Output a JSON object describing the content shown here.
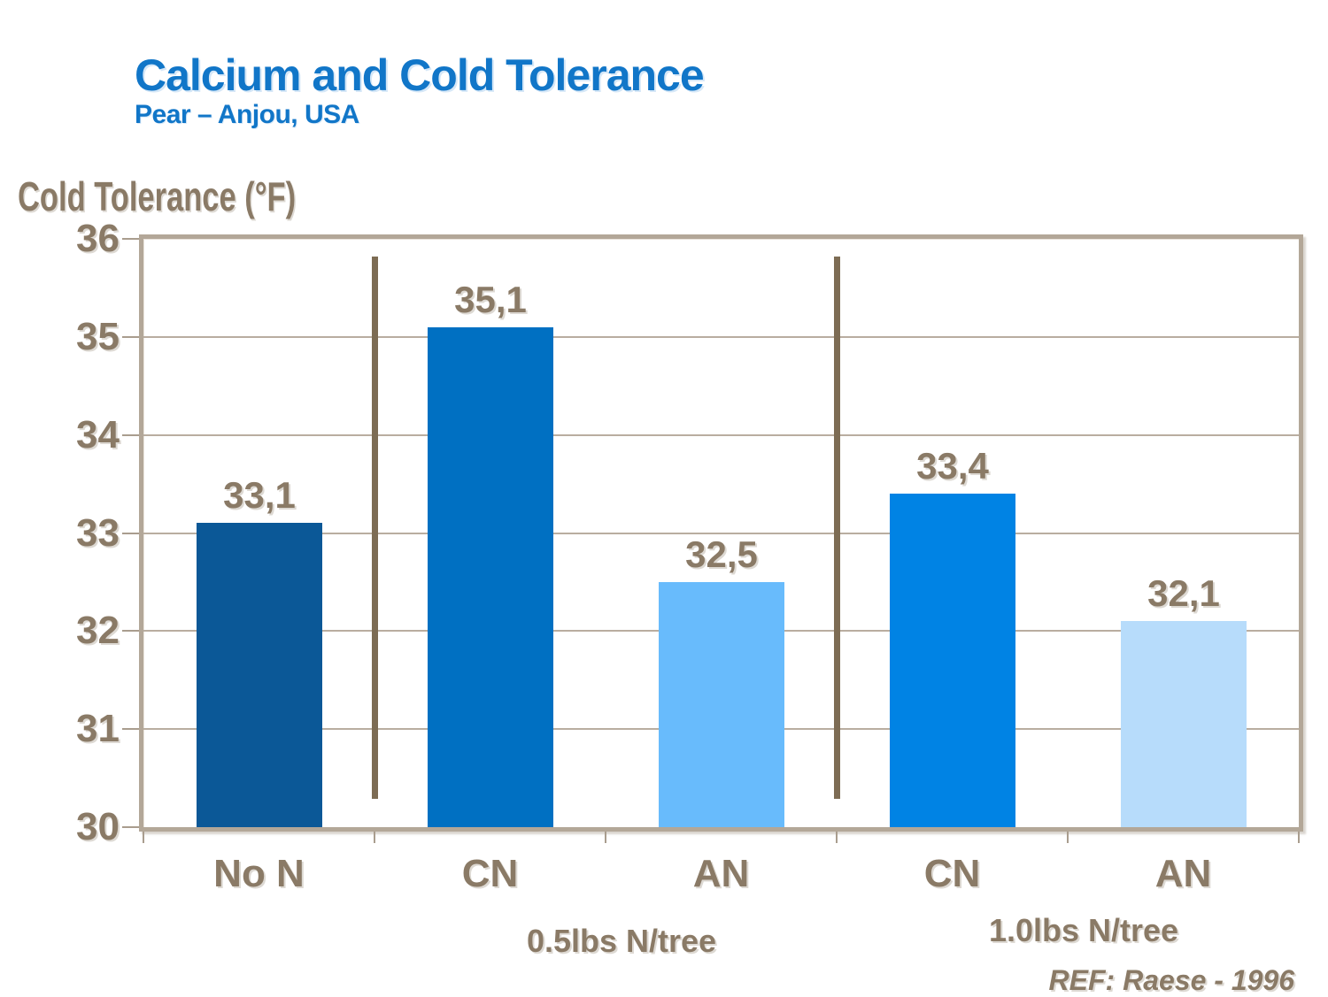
{
  "title": "Calcium and Cold Tolerance",
  "subtitle": "Pear – Anjou, USA",
  "reference": "REF: Raese - 1996",
  "chart_data": {
    "type": "bar",
    "title": "Calcium and Cold Tolerance",
    "subtitle": "Pear – Anjou, USA",
    "ylabel": "Cold Tolerance (°F)",
    "xlabel": "",
    "ylim": [
      30,
      36
    ],
    "yticks": [
      36,
      35,
      34,
      33,
      32,
      31,
      30
    ],
    "categories": [
      "No N",
      "CN",
      "AN",
      "CN",
      "AN"
    ],
    "values": [
      33.1,
      35.1,
      32.5,
      33.4,
      32.1
    ],
    "value_labels": [
      "33,1",
      "35,1",
      "32,5",
      "33,4",
      "32,1"
    ],
    "bar_colors": [
      "#0b5897",
      "#0070c2",
      "#68bbfc",
      "#0083e4",
      "#b7dcfb"
    ],
    "groups": [
      {
        "label": "0.5lbs N/tree",
        "categories": [
          "CN",
          "AN"
        ]
      },
      {
        "label": "1.0lbs N/tree",
        "categories": [
          "CN",
          "AN"
        ]
      }
    ],
    "group_divider_boundaries": [
      1,
      3
    ],
    "grid": true,
    "legend": false,
    "annotation": "REF: Raese - 1996"
  },
  "colors": {
    "title_blue": "#1176c8",
    "axis_text": "#8a7a66",
    "frame": "#b3a798",
    "gridline": "#b9ada0",
    "tick": "#a99d8e",
    "divider": "#7d6c54"
  }
}
